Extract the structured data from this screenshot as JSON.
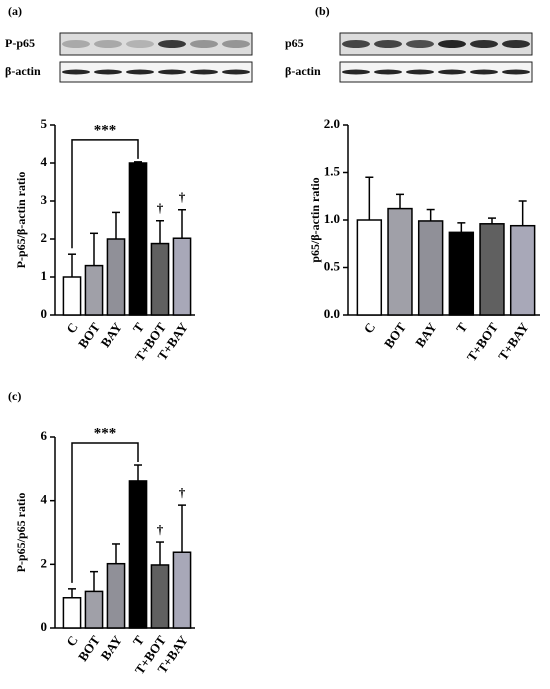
{
  "chart_data": [
    {
      "type": "bar",
      "panel_label": "(a)",
      "blot_labels": [
        "P-p65",
        "β-actin"
      ],
      "y_label": "P-p65/β-actin ratio",
      "categories": [
        "C",
        "BOT",
        "BAY",
        "T",
        "T+BOT",
        "T+BAY"
      ],
      "values": [
        1.0,
        1.3,
        2.0,
        4.0,
        1.88,
        2.02
      ],
      "errors": [
        0.6,
        0.85,
        0.7,
        0.03,
        0.6,
        0.75
      ],
      "colors": [
        "#ffffff",
        "#a0a0a8",
        "#909098",
        "#000000",
        "#606060",
        "#a8a8b8"
      ],
      "ylim": [
        0,
        5
      ],
      "yticks": [
        0,
        1,
        2,
        3,
        4,
        5
      ],
      "annotations": [
        {
          "text": "***",
          "from": "C",
          "to": "T"
        },
        {
          "text": "†",
          "at": "T+BOT"
        },
        {
          "text": "†",
          "at": "T+BAY"
        }
      ]
    },
    {
      "type": "bar",
      "panel_label": "(b)",
      "blot_labels": [
        "p65",
        "β-actin"
      ],
      "y_label": "p65/β-actin ratio",
      "categories": [
        "C",
        "BOT",
        "BAY",
        "T",
        "T+BOT",
        "T+BAY"
      ],
      "values": [
        1.0,
        1.12,
        0.99,
        0.87,
        0.96,
        0.94
      ],
      "errors": [
        0.45,
        0.15,
        0.12,
        0.1,
        0.06,
        0.26
      ],
      "colors": [
        "#ffffff",
        "#a0a0a8",
        "#909098",
        "#000000",
        "#606060",
        "#a8a8b8"
      ],
      "ylim": [
        0,
        2
      ],
      "yticks": [
        {
          "value": 0,
          "label": "0.0"
        },
        {
          "value": 0.5,
          "label": "0.5"
        },
        {
          "value": 1,
          "label": "1.0"
        },
        {
          "value": 1.5,
          "label": "1.5"
        },
        {
          "value": 2,
          "label": "2.0"
        }
      ],
      "annotations": []
    },
    {
      "type": "bar",
      "panel_label": "(c)",
      "y_label": "P-p65/p65 ratio",
      "categories": [
        "C",
        "BOT",
        "BAY",
        "T",
        "T+BOT",
        "T+BAY"
      ],
      "values": [
        0.95,
        1.15,
        2.02,
        4.62,
        1.98,
        2.38
      ],
      "errors": [
        0.28,
        0.62,
        0.62,
        0.5,
        0.72,
        1.48
      ],
      "colors": [
        "#ffffff",
        "#a0a0a8",
        "#909098",
        "#000000",
        "#606060",
        "#a8a8b8"
      ],
      "ylim": [
        0,
        6
      ],
      "yticks": [
        0,
        2,
        4,
        6
      ],
      "annotations": [
        {
          "text": "***",
          "from": "C",
          "to": "T"
        },
        {
          "text": "†",
          "at": "T+BOT"
        },
        {
          "text": "†",
          "at": "T+BAY"
        }
      ]
    }
  ]
}
